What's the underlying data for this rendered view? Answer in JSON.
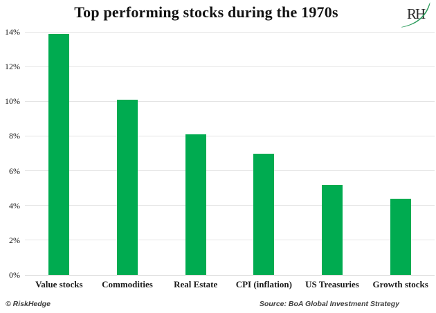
{
  "title": "Top performing stocks during the 1970s",
  "logo": {
    "text": "RH",
    "swoosh_color": "#2f9e5f",
    "letter_color": "#2b2b2b"
  },
  "chart_data": {
    "type": "bar",
    "title": "Top performing stocks during the 1970s",
    "categories": [
      "Value stocks",
      "Commodities",
      "Real Estate",
      "CPI (inflation)",
      "US Treasuries",
      "Growth stocks"
    ],
    "values": [
      13.9,
      10.1,
      8.1,
      7.0,
      5.2,
      4.4
    ],
    "xlabel": "",
    "ylabel": "",
    "ylim": [
      0,
      14
    ],
    "ytick_values": [
      0,
      2,
      4,
      6,
      8,
      10,
      12,
      14
    ],
    "ytick_labels": [
      "0%",
      "2%",
      "4%",
      "6%",
      "8%",
      "10%",
      "12%",
      "14%"
    ],
    "grid": "horizontal",
    "legend": "none",
    "colors": {
      "bar": "#00ab50",
      "gridline": "#e4e4e4",
      "baseline": "#d9d9d9"
    }
  },
  "footer": {
    "left": "© RiskHedge",
    "right": "Source: BoA Global Investment Strategy"
  }
}
